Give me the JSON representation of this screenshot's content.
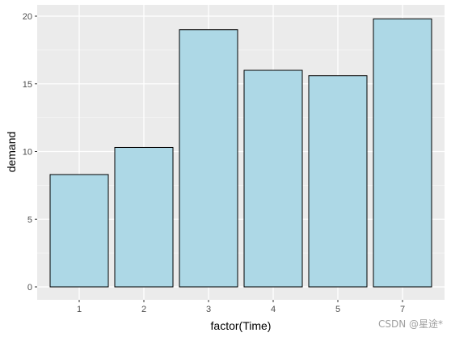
{
  "chart_data": {
    "type": "bar",
    "categories": [
      "1",
      "2",
      "3",
      "4",
      "5",
      "7"
    ],
    "values": [
      8.3,
      10.3,
      19.0,
      16.0,
      15.6,
      19.8
    ],
    "xlabel": "factor(Time)",
    "ylabel": "demand",
    "ylim": [
      0,
      20.8
    ],
    "yticks": [
      0,
      5,
      10,
      15,
      20
    ],
    "grid": true,
    "colors": {
      "panel_background": "#ebebeb",
      "grid_major": "#ffffff",
      "grid_minor": "#f5f5f5",
      "bar_fill": "#add8e6",
      "bar_outline": "#000000"
    }
  },
  "watermark": "CSDN @星途*"
}
